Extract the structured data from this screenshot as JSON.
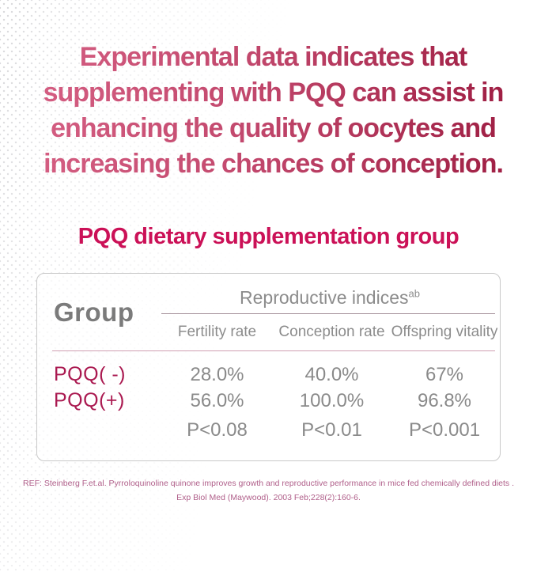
{
  "colors": {
    "headline_gradient_start": "#d66084",
    "headline_gradient_end": "#9c1b40",
    "section_title": "#cb1157",
    "group_header": "#7b7b7b",
    "row_label": "#aa1950",
    "value_text": "#8a8a8a",
    "footer_text": "#b05f8a",
    "card_border": "#c9c9c9"
  },
  "headline": {
    "lines": [
      "Experimental data indicates that",
      "supplementing with PQQ can assist in",
      "enhancing the quality of oocytes and",
      "increasing the chances of conception."
    ]
  },
  "section": {
    "title": "PQQ dietary supplementation group"
  },
  "table": {
    "group_header": "Group",
    "indices_title": "Reproductive indices",
    "indices_superscript": "ab",
    "columns": [
      "Fertility rate",
      "Conception rate",
      "Offspring vitality"
    ],
    "rows": [
      {
        "group": "PQQ( -)",
        "fertility": "28.0%",
        "conception": "40.0%",
        "vitality": "67%"
      },
      {
        "group": "PQQ(+)",
        "fertility": "56.0%",
        "conception": "100.0%",
        "vitality": "96.8%"
      },
      {
        "group": "",
        "fertility": "P<0.08",
        "conception": "P<0.01",
        "vitality": "P<0.001"
      }
    ]
  },
  "footer": {
    "line1": "REF: Steinberg F.et.al. Pyrroloquinoline quinone improves growth and reproductive performance in mice fed chemically defined diets .",
    "line2": "Exp Biol Med (Maywood). 2003 Feb;228(2):160-6."
  },
  "chart_data": {
    "type": "table",
    "title": "PQQ dietary supplementation group",
    "columns": [
      "Group",
      "Fertility rate",
      "Conception rate",
      "Offspring vitality"
    ],
    "rows": [
      [
        "PQQ( -)",
        "28.0%",
        "40.0%",
        "67%"
      ],
      [
        "PQQ(+)",
        "56.0%",
        "100.0%",
        "96.8%"
      ],
      [
        "",
        "P<0.08",
        "P<0.01",
        "P<0.001"
      ]
    ]
  }
}
